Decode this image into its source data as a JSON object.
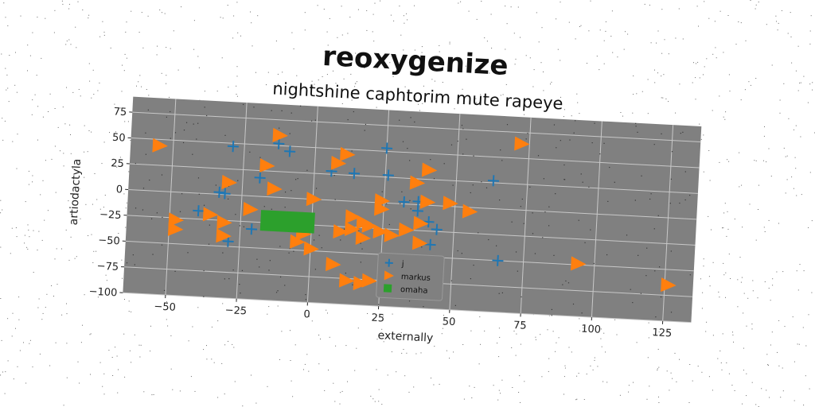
{
  "chart_data": {
    "type": "scatter",
    "title": "reoxygenize",
    "subtitle": "nightshine caphtorim mute rapeye",
    "xlabel": "externally",
    "ylabel": "artiodactyla",
    "xlim": [
      -65,
      135
    ],
    "ylim": [
      -100,
      90
    ],
    "xticks": [
      -50,
      -25,
      0,
      25,
      50,
      75,
      100,
      125
    ],
    "yticks": [
      -100,
      -75,
      -50,
      -25,
      0,
      25,
      50,
      75
    ],
    "grid": true,
    "background": "#808080",
    "legend_position": "lower-center",
    "series": [
      {
        "name": "j",
        "marker": "plus",
        "color": "#1f77b4",
        "points": [
          [
            -29,
            47
          ],
          [
            -13,
            52
          ],
          [
            -9,
            45
          ],
          [
            -19,
            18
          ],
          [
            -33,
            2
          ],
          [
            -31,
            1
          ],
          [
            -40,
            -17
          ],
          [
            -29,
            -45
          ],
          [
            -21,
            -32
          ],
          [
            -13,
            -20
          ],
          [
            6,
            28
          ],
          [
            14,
            27
          ],
          [
            25,
            53
          ],
          [
            26,
            27
          ],
          [
            32,
            2
          ],
          [
            37,
            -6
          ],
          [
            37,
            3
          ],
          [
            41,
            -16
          ],
          [
            44,
            -23
          ],
          [
            42,
            -38
          ],
          [
            45,
            -55
          ],
          [
            63,
            27
          ],
          [
            66,
            -50
          ]
        ]
      },
      {
        "name": "markus",
        "marker": "triangle-right",
        "color": "#ff7f0e",
        "points": [
          [
            -55,
            44
          ],
          [
            -13,
            60
          ],
          [
            11,
            45
          ],
          [
            8,
            36
          ],
          [
            -17,
            30
          ],
          [
            -30,
            12
          ],
          [
            -14,
            8
          ],
          [
            36,
            21
          ],
          [
            40,
            34
          ],
          [
            0,
            0
          ],
          [
            24,
            2
          ],
          [
            24,
            -6
          ],
          [
            40,
            3
          ],
          [
            48,
            3
          ],
          [
            55,
            -4
          ],
          [
            -22,
            -13
          ],
          [
            -36,
            -20
          ],
          [
            -31,
            -27
          ],
          [
            -48,
            -27
          ],
          [
            -48,
            -36
          ],
          [
            -31,
            -40
          ],
          [
            -3,
            -34
          ],
          [
            -5,
            -42
          ],
          [
            0,
            -48
          ],
          [
            14,
            -15
          ],
          [
            18,
            -20
          ],
          [
            14,
            -27
          ],
          [
            20,
            -23
          ],
          [
            10,
            -30
          ],
          [
            18,
            -35
          ],
          [
            24,
            -28
          ],
          [
            28,
            -31
          ],
          [
            33,
            -25
          ],
          [
            38,
            -18
          ],
          [
            38,
            -37
          ],
          [
            8,
            -62
          ],
          [
            13,
            -77
          ],
          [
            18,
            -79
          ],
          [
            21,
            -76
          ],
          [
            72,
            64
          ],
          [
            94,
            -49
          ],
          [
            126,
            -65
          ]
        ]
      },
      {
        "name": "omaha",
        "marker": "square",
        "color": "#2ca02c",
        "region": {
          "x": [
            -18,
            1
          ],
          "y": [
            -33,
            -13
          ]
        }
      }
    ]
  }
}
